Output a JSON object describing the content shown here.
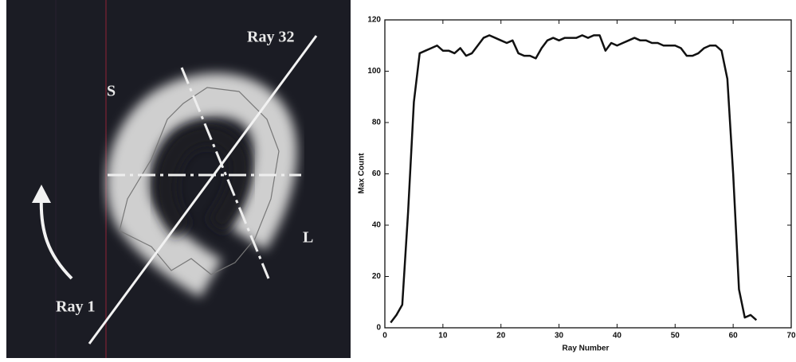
{
  "image": {
    "labels": [
      "Ray 32",
      "S",
      "L",
      "Ray 1"
    ]
  },
  "chart_data": {
    "type": "line",
    "x_label": "Ray Number",
    "y_label": "Max Count",
    "x": [
      1,
      2,
      3,
      4,
      5,
      6,
      7,
      8,
      9,
      10,
      11,
      12,
      13,
      14,
      15,
      16,
      17,
      18,
      19,
      20,
      21,
      22,
      23,
      24,
      25,
      26,
      27,
      28,
      29,
      30,
      31,
      32,
      33,
      34,
      35,
      36,
      37,
      38,
      39,
      40,
      41,
      42,
      43,
      44,
      45,
      46,
      47,
      48,
      49,
      50,
      51,
      52,
      53,
      54,
      55,
      56,
      57,
      58,
      59,
      60,
      61,
      62,
      63,
      64
    ],
    "values": [
      2,
      5,
      9,
      45,
      88,
      107,
      108,
      109,
      110,
      108,
      108,
      107,
      109,
      106,
      107,
      110,
      113,
      114,
      113,
      112,
      111,
      112,
      107,
      106,
      106,
      105,
      109,
      112,
      113,
      112,
      113,
      113,
      113,
      114,
      113,
      114,
      114,
      108,
      111,
      110,
      111,
      112,
      113,
      112,
      112,
      111,
      111,
      110,
      110,
      110,
      109,
      106,
      106,
      107,
      109,
      110,
      110,
      108,
      97,
      60,
      15,
      4,
      5,
      3
    ],
    "color": "#111111",
    "xlim": [
      0,
      70
    ],
    "xticks": [
      0,
      10,
      20,
      30,
      40,
      50,
      60,
      70
    ],
    "ylim": [
      0,
      120
    ],
    "yticks": [
      0,
      20,
      40,
      60,
      80,
      100,
      120
    ]
  }
}
